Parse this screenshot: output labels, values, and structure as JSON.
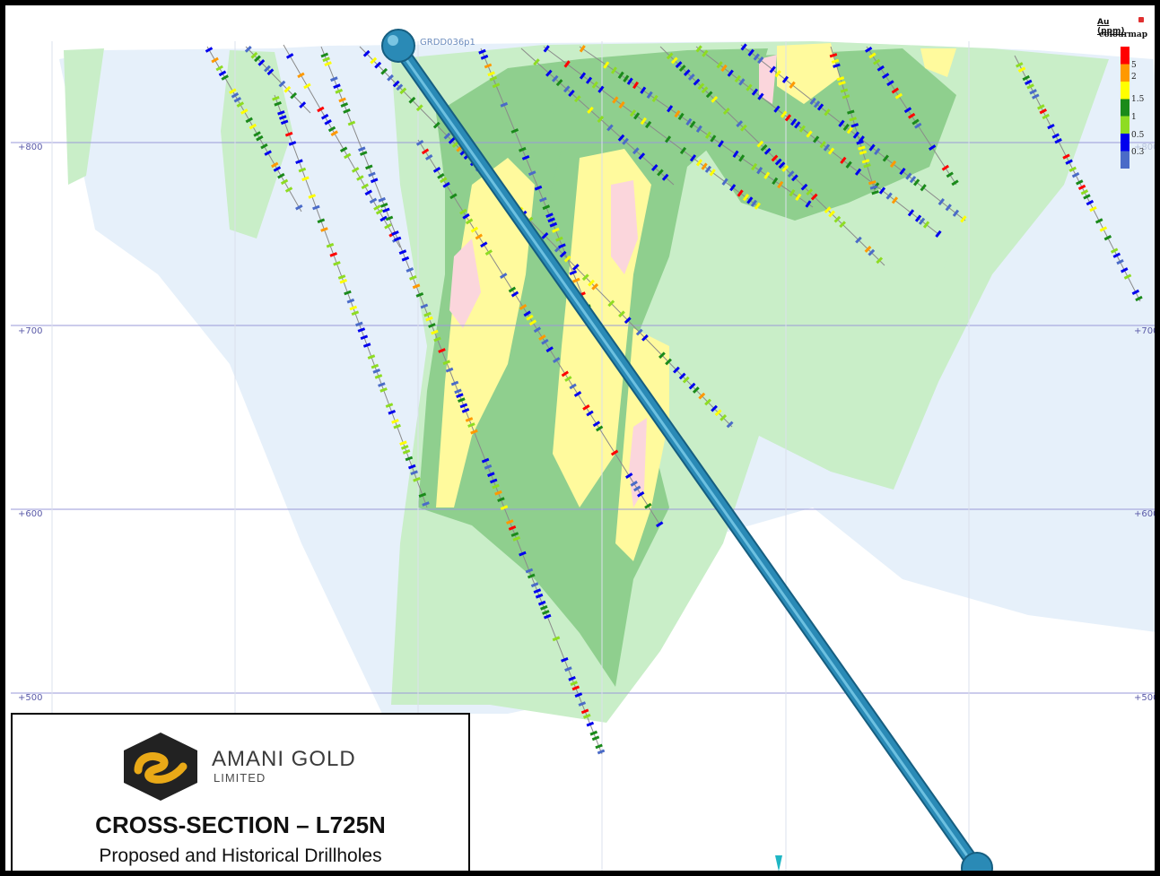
{
  "section": {
    "elevation_labels": [
      "+800",
      "+700",
      "+600",
      "+500"
    ],
    "elevation_labels_right": [
      "+800",
      "+700",
      "+600",
      "+500"
    ],
    "proposed_hole_name": "GRDD036p1",
    "ground_colors": {
      "very_low": "#e6f0fa",
      "low": "#c9eec8",
      "mid": "#8fcf8e",
      "high": "#fffa9d",
      "very_high": "#fbd6dc"
    },
    "proposed_hole_color": "#2a8ab6"
  },
  "legend": {
    "title": "Au (ppm)",
    "subtitle": "colourmap",
    "entries": [
      {
        "label": "5",
        "color": "#ff0000"
      },
      {
        "label": "2",
        "color": "#ff9900"
      },
      {
        "label": "1.5",
        "color": "#ffff00"
      },
      {
        "label": "1",
        "color": "#1a8a1a"
      },
      {
        "label": "0.5",
        "color": "#8edc22"
      },
      {
        "label": "0.3",
        "color": "#0000ee"
      },
      {
        "label": "",
        "color": "#4a6bc8"
      }
    ]
  },
  "title_box": {
    "company": "AMANI GOLD",
    "company_sub": "LIMITED",
    "title": "CROSS-SECTION – L725N",
    "subtitle": "Proposed and Historical Drillholes"
  }
}
